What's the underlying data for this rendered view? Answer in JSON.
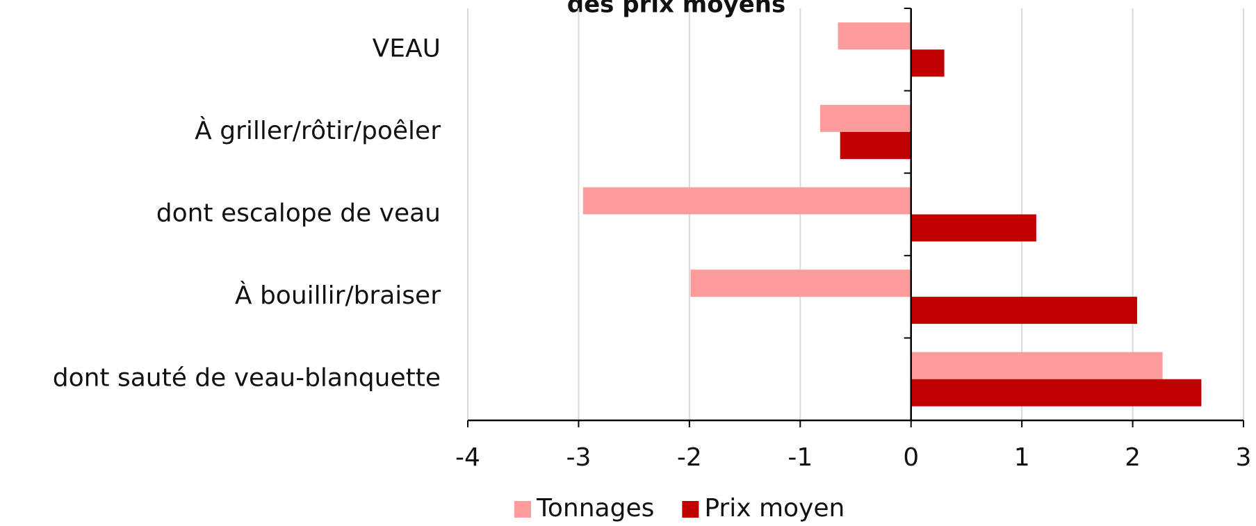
{
  "chart_data": {
    "type": "bar",
    "orientation": "horizontal",
    "title": "des prix moyens",
    "categories": [
      "VEAU",
      "À griller/rôtir/poêler",
      "dont escalope de veau",
      "À bouillir/braiser",
      "dont sauté de veau-blanquette"
    ],
    "series": [
      {
        "name": "Tonnages",
        "color": "#ff9b9b",
        "values": [
          -0.66,
          -0.82,
          -2.96,
          -1.99,
          2.27
        ]
      },
      {
        "name": "Prix moyen",
        "color": "#c00000",
        "values": [
          0.3,
          -0.64,
          1.13,
          2.04,
          2.62
        ]
      }
    ],
    "xlim": [
      -4,
      3
    ],
    "xticks": [
      -4,
      -3,
      -2,
      -1,
      0,
      1,
      2,
      3
    ],
    "grid": true,
    "legend": "bottom"
  }
}
